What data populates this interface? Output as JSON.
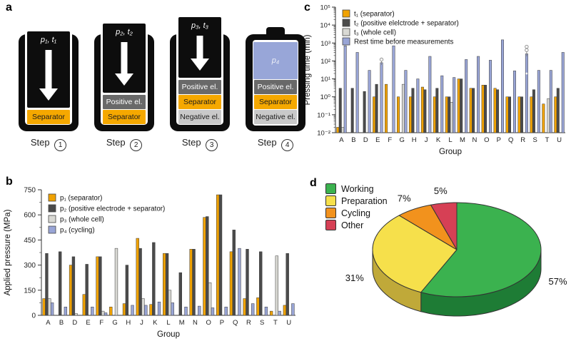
{
  "panel_letters": {
    "a": "a",
    "b": "b",
    "c": "c",
    "d": "d"
  },
  "diagram": {
    "step_word": "Step",
    "colors": {
      "separator": "#f5a800",
      "positive": "#696969",
      "negative": "#c9c9c9",
      "cycling": "#98a6d8",
      "shell": "#0d0d0d"
    },
    "text_colors": {
      "separator": "#1c1c1c",
      "positive": "#ffffff",
      "negative": "#1c1c1c"
    },
    "steps": [
      {
        "num": "1",
        "press_label": "p₁, t₁",
        "plunger_top": 42,
        "layers": [
          {
            "label": "Separator",
            "type": "separator"
          }
        ]
      },
      {
        "num": "2",
        "press_label": "p₂, t₂",
        "plunger_top": 31,
        "layers": [
          {
            "label": "Positive el.",
            "type": "positive"
          },
          {
            "label": "Separator",
            "type": "separator"
          }
        ]
      },
      {
        "num": "3",
        "press_label": "p₃, t₃",
        "plunger_top": 22,
        "layers": [
          {
            "label": "Positive el.",
            "type": "positive"
          },
          {
            "label": "Separator",
            "type": "separator"
          },
          {
            "label": "Negative el.",
            "type": "negative"
          }
        ]
      },
      {
        "num": "4",
        "battery": true,
        "cell_label": "p₄",
        "layers": [
          {
            "label": "Positive el.",
            "type": "positive"
          },
          {
            "label": "Separator",
            "type": "separator"
          },
          {
            "label": "Negative el.",
            "type": "negative"
          }
        ]
      }
    ]
  },
  "chart_data": [
    {
      "id": "b",
      "type": "bar",
      "scale": "linear",
      "title": "",
      "xlabel": "Group",
      "ylabel": "Applied pressure (MPa)",
      "ylim": [
        0,
        750
      ],
      "yticks": [
        0,
        150,
        300,
        450,
        600,
        750
      ],
      "grid": false,
      "legend_position": "top-left",
      "categories": [
        "A",
        "B",
        "D",
        "E",
        "F",
        "G",
        "H",
        "J",
        "K",
        "L",
        "M",
        "N",
        "O",
        "P",
        "Q",
        "R",
        "S",
        "T",
        "U"
      ],
      "series": [
        {
          "name": "p₁ (separator)",
          "color": "#f0a202",
          "values": [
            100,
            null,
            300,
            125,
            350,
            50,
            70,
            460,
            65,
            370,
            null,
            395,
            585,
            720,
            380,
            100,
            105,
            25,
            60
          ]
        },
        {
          "name": "p₂ (positive electrode + separator)",
          "color": "#4b4b4b",
          "values": [
            370,
            380,
            350,
            305,
            350,
            null,
            300,
            400,
            435,
            370,
            255,
            395,
            590,
            720,
            510,
            395,
            380,
            null,
            370
          ]
        },
        {
          "name": "p₃ (whole cell)",
          "color": "#d9d9d4",
          "values": [
            100,
            null,
            10,
            null,
            25,
            400,
            null,
            100,
            null,
            150,
            null,
            null,
            195,
            null,
            null,
            null,
            null,
            355,
            null
          ]
        },
        {
          "name": "p₄ (cycling)",
          "color": "#99a5d6",
          "values": [
            75,
            50,
            null,
            50,
            15,
            null,
            60,
            60,
            80,
            75,
            50,
            55,
            45,
            50,
            400,
            70,
            50,
            25,
            70
          ]
        }
      ]
    },
    {
      "id": "c",
      "type": "bar",
      "scale": "log",
      "title": "",
      "xlabel": "Group",
      "ylabel": "Pressing time (min)",
      "ylim": [
        0.01,
        100000
      ],
      "ytick_exponents": [
        5,
        4,
        3,
        2,
        1,
        0,
        -1,
        -2
      ],
      "ytick_labels": [
        "10⁵",
        "10⁴",
        "10³",
        "10²",
        "10¹",
        "10⁰",
        "10⁻¹",
        "10⁻²"
      ],
      "grid": false,
      "legend_position": "top-left",
      "categories": [
        "A",
        "B",
        "D",
        "E",
        "F",
        "G",
        "H",
        "J",
        "K",
        "L",
        "M",
        "N",
        "O",
        "P",
        "Q",
        "R",
        "S",
        "T",
        "U"
      ],
      "series": [
        {
          "name": "t₁ (separator)",
          "color": "#f0a202",
          "values": [
            0.02,
            null,
            null,
            1,
            5,
            1,
            1,
            3.5,
            1,
            1,
            10,
            3,
            4.5,
            3,
            1,
            1,
            1,
            0.4,
            1
          ]
        },
        {
          "name": "t₂ (positive elelctrode + separator)",
          "color": "#4b4b4b",
          "values": [
            3,
            3,
            2,
            5,
            null,
            null,
            3,
            2.5,
            3,
            1,
            10,
            3,
            4.5,
            2.5,
            1,
            1,
            2.5,
            null,
            3
          ]
        },
        {
          "name": "t₃ (whole cell)",
          "color": "#d9d9d4",
          "values": [
            0.02,
            null,
            null,
            null,
            null,
            5,
            null,
            null,
            null,
            0.5,
            null,
            null,
            null,
            null,
            null,
            null,
            null,
            0.8,
            null
          ]
        },
        {
          "name": "Rest time before measurements",
          "color": "#99a5d6",
          "values": [
            700,
            300,
            30,
            80,
            700,
            30,
            10,
            180,
            15,
            12,
            120,
            180,
            110,
            1500,
            28,
            250,
            30,
            30,
            300
          ]
        }
      ],
      "annotations": [
        {
          "group": "E",
          "series": 3,
          "whisker": [
            60,
            115
          ],
          "points": [
            {
              "v": 120,
              "style": "open"
            }
          ]
        },
        {
          "group": "R",
          "series": 3,
          "whisker": [
            180,
            560
          ],
          "points": [
            {
              "v": 400,
              "style": "open"
            },
            {
              "v": 620,
              "style": "open"
            },
            {
              "v": 20,
              "style": "dot"
            }
          ]
        }
      ]
    },
    {
      "id": "d",
      "type": "pie",
      "labels": [
        "Working",
        "Preparation",
        "Cycling",
        "Other"
      ],
      "values": [
        57,
        31,
        7,
        5
      ],
      "pct_labels": [
        "57%",
        "31%",
        "7%",
        "5%"
      ],
      "colors": [
        "#3bb24f",
        "#f6e04b",
        "#f2921d",
        "#d64055"
      ],
      "side_colors": [
        "#1e7c35",
        "#c0a939",
        "#b86a10",
        "#9e2c3e"
      ],
      "start_angle": -90,
      "legend_position": "left"
    }
  ]
}
